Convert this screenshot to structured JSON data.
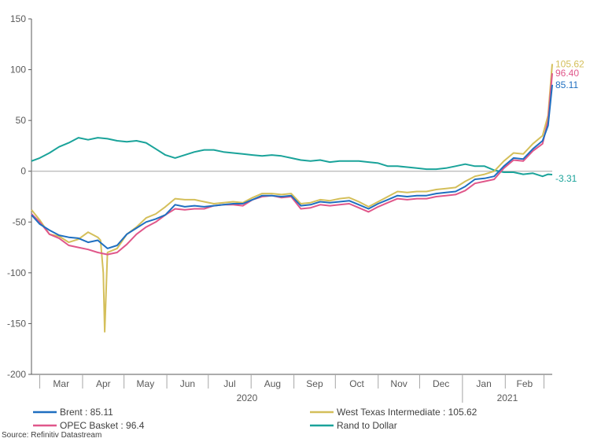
{
  "chart_data": {
    "type": "line",
    "title": "",
    "xlabel": "",
    "ylabel": "",
    "ylim": [
      -200,
      150
    ],
    "y_ticks": [
      "150",
      "100",
      "50",
      "0",
      "-50",
      "-100",
      "-150",
      "-200"
    ],
    "x_ticks": [
      "Mar",
      "Apr",
      "May",
      "Jun",
      "Jul",
      "Aug",
      "Sep",
      "Oct",
      "Nov",
      "Dec",
      "Jan",
      "Feb"
    ],
    "year_labels": [
      "2020",
      "2021"
    ],
    "grid": false,
    "legend_position": "bottom",
    "series": [
      {
        "name": "Brent : 85.11",
        "color": "#1f6fc0",
        "end_label": "85.11",
        "points": [
          [
            "2020-02-24",
            -43
          ],
          [
            "2020-03-01",
            -52
          ],
          [
            "2020-03-08",
            -58
          ],
          [
            "2020-03-15",
            -63
          ],
          [
            "2020-03-22",
            -65
          ],
          [
            "2020-03-29",
            -66
          ],
          [
            "2020-04-05",
            -70
          ],
          [
            "2020-04-12",
            -68
          ],
          [
            "2020-04-19",
            -76
          ],
          [
            "2020-04-26",
            -73
          ],
          [
            "2020-05-03",
            -62
          ],
          [
            "2020-05-10",
            -56
          ],
          [
            "2020-05-17",
            -50
          ],
          [
            "2020-05-24",
            -47
          ],
          [
            "2020-05-31",
            -43
          ],
          [
            "2020-06-07",
            -33
          ],
          [
            "2020-06-14",
            -35
          ],
          [
            "2020-06-21",
            -34
          ],
          [
            "2020-06-28",
            -35
          ],
          [
            "2020-07-05",
            -34
          ],
          [
            "2020-07-12",
            -33
          ],
          [
            "2020-07-19",
            -32
          ],
          [
            "2020-07-26",
            -32
          ],
          [
            "2020-08-02",
            -28
          ],
          [
            "2020-08-09",
            -24
          ],
          [
            "2020-08-16",
            -24
          ],
          [
            "2020-08-23",
            -25
          ],
          [
            "2020-08-30",
            -24
          ],
          [
            "2020-09-06",
            -34
          ],
          [
            "2020-09-13",
            -33
          ],
          [
            "2020-09-20",
            -30
          ],
          [
            "2020-09-27",
            -31
          ],
          [
            "2020-10-04",
            -30
          ],
          [
            "2020-10-11",
            -29
          ],
          [
            "2020-10-18",
            -33
          ],
          [
            "2020-10-25",
            -37
          ],
          [
            "2020-11-01",
            -32
          ],
          [
            "2020-11-08",
            -28
          ],
          [
            "2020-11-15",
            -24
          ],
          [
            "2020-11-22",
            -25
          ],
          [
            "2020-11-29",
            -24
          ],
          [
            "2020-12-06",
            -24
          ],
          [
            "2020-12-13",
            -22
          ],
          [
            "2020-12-20",
            -21
          ],
          [
            "2020-12-27",
            -20
          ],
          [
            "2021-01-03",
            -15
          ],
          [
            "2021-01-10",
            -8
          ],
          [
            "2021-01-17",
            -7
          ],
          [
            "2021-01-24",
            -5
          ],
          [
            "2021-01-31",
            5
          ],
          [
            "2021-02-07",
            13
          ],
          [
            "2021-02-14",
            12
          ],
          [
            "2021-02-21",
            22
          ],
          [
            "2021-02-28",
            30
          ],
          [
            "2021-03-04",
            45
          ],
          [
            "2021-03-07",
            85.11
          ]
        ]
      },
      {
        "name": "OPEC Basket : 96.4",
        "color": "#e0578a",
        "end_label": "96.40",
        "points": [
          [
            "2020-02-24",
            -42
          ],
          [
            "2020-03-01",
            -50
          ],
          [
            "2020-03-08",
            -62
          ],
          [
            "2020-03-15",
            -66
          ],
          [
            "2020-03-22",
            -73
          ],
          [
            "2020-03-29",
            -75
          ],
          [
            "2020-04-05",
            -77
          ],
          [
            "2020-04-12",
            -80
          ],
          [
            "2020-04-19",
            -82
          ],
          [
            "2020-04-26",
            -80
          ],
          [
            "2020-05-03",
            -72
          ],
          [
            "2020-05-10",
            -62
          ],
          [
            "2020-05-17",
            -55
          ],
          [
            "2020-05-24",
            -50
          ],
          [
            "2020-05-31",
            -43
          ],
          [
            "2020-06-07",
            -37
          ],
          [
            "2020-06-14",
            -38
          ],
          [
            "2020-06-21",
            -37
          ],
          [
            "2020-06-28",
            -37
          ],
          [
            "2020-07-05",
            -34
          ],
          [
            "2020-07-12",
            -33
          ],
          [
            "2020-07-19",
            -33
          ],
          [
            "2020-07-26",
            -34
          ],
          [
            "2020-08-02",
            -28
          ],
          [
            "2020-08-09",
            -25
          ],
          [
            "2020-08-16",
            -24
          ],
          [
            "2020-08-23",
            -26
          ],
          [
            "2020-08-30",
            -25
          ],
          [
            "2020-09-06",
            -37
          ],
          [
            "2020-09-13",
            -36
          ],
          [
            "2020-09-20",
            -33
          ],
          [
            "2020-09-27",
            -34
          ],
          [
            "2020-10-04",
            -33
          ],
          [
            "2020-10-11",
            -32
          ],
          [
            "2020-10-18",
            -36
          ],
          [
            "2020-10-25",
            -40
          ],
          [
            "2020-11-01",
            -35
          ],
          [
            "2020-11-08",
            -31
          ],
          [
            "2020-11-15",
            -27
          ],
          [
            "2020-11-22",
            -28
          ],
          [
            "2020-11-29",
            -27
          ],
          [
            "2020-12-06",
            -27
          ],
          [
            "2020-12-13",
            -25
          ],
          [
            "2020-12-20",
            -24
          ],
          [
            "2020-12-27",
            -23
          ],
          [
            "2021-01-03",
            -19
          ],
          [
            "2021-01-10",
            -12
          ],
          [
            "2021-01-17",
            -10
          ],
          [
            "2021-01-24",
            -8
          ],
          [
            "2021-01-31",
            3
          ],
          [
            "2021-02-07",
            11
          ],
          [
            "2021-02-14",
            10
          ],
          [
            "2021-02-21",
            20
          ],
          [
            "2021-02-28",
            27
          ],
          [
            "2021-03-04",
            50
          ],
          [
            "2021-03-07",
            96.4
          ]
        ]
      },
      {
        "name": "West Texas Intermediate : 105.62",
        "color": "#d4bf5a",
        "end_label": "105.62",
        "points": [
          [
            "2020-02-24",
            -38
          ],
          [
            "2020-03-01",
            -48
          ],
          [
            "2020-03-08",
            -62
          ],
          [
            "2020-03-15",
            -64
          ],
          [
            "2020-03-22",
            -70
          ],
          [
            "2020-03-29",
            -67
          ],
          [
            "2020-04-05",
            -60
          ],
          [
            "2020-04-12",
            -65
          ],
          [
            "2020-04-14",
            -68
          ],
          [
            "2020-04-16",
            -100
          ],
          [
            "2020-04-17",
            -158
          ],
          [
            "2020-04-19",
            -80
          ],
          [
            "2020-04-26",
            -76
          ],
          [
            "2020-05-03",
            -62
          ],
          [
            "2020-05-10",
            -55
          ],
          [
            "2020-05-17",
            -46
          ],
          [
            "2020-05-24",
            -42
          ],
          [
            "2020-05-31",
            -35
          ],
          [
            "2020-06-07",
            -27
          ],
          [
            "2020-06-14",
            -28
          ],
          [
            "2020-06-21",
            -28
          ],
          [
            "2020-06-28",
            -30
          ],
          [
            "2020-07-05",
            -32
          ],
          [
            "2020-07-12",
            -31
          ],
          [
            "2020-07-19",
            -30
          ],
          [
            "2020-07-26",
            -31
          ],
          [
            "2020-08-02",
            -26
          ],
          [
            "2020-08-09",
            -22
          ],
          [
            "2020-08-16",
            -22
          ],
          [
            "2020-08-23",
            -23
          ],
          [
            "2020-08-30",
            -22
          ],
          [
            "2020-09-06",
            -32
          ],
          [
            "2020-09-13",
            -31
          ],
          [
            "2020-09-20",
            -28
          ],
          [
            "2020-09-27",
            -29
          ],
          [
            "2020-10-04",
            -27
          ],
          [
            "2020-10-11",
            -26
          ],
          [
            "2020-10-18",
            -30
          ],
          [
            "2020-10-25",
            -35
          ],
          [
            "2020-11-01",
            -30
          ],
          [
            "2020-11-08",
            -25
          ],
          [
            "2020-11-15",
            -20
          ],
          [
            "2020-11-22",
            -21
          ],
          [
            "2020-11-29",
            -20
          ],
          [
            "2020-12-06",
            -20
          ],
          [
            "2020-12-13",
            -18
          ],
          [
            "2020-12-20",
            -17
          ],
          [
            "2020-12-27",
            -16
          ],
          [
            "2021-01-03",
            -10
          ],
          [
            "2021-01-10",
            -5
          ],
          [
            "2021-01-17",
            -3
          ],
          [
            "2021-01-24",
            0
          ],
          [
            "2021-01-31",
            10
          ],
          [
            "2021-02-07",
            18
          ],
          [
            "2021-02-14",
            17
          ],
          [
            "2021-02-21",
            27
          ],
          [
            "2021-02-28",
            35
          ],
          [
            "2021-03-04",
            55
          ],
          [
            "2021-03-07",
            105.62
          ]
        ]
      },
      {
        "name": "Rand to Dollar",
        "color": "#1aa39a",
        "end_label": "-3.31",
        "points": [
          [
            "2020-02-24",
            10
          ],
          [
            "2020-03-01",
            13
          ],
          [
            "2020-03-08",
            18
          ],
          [
            "2020-03-15",
            24
          ],
          [
            "2020-03-22",
            28
          ],
          [
            "2020-03-29",
            33
          ],
          [
            "2020-04-05",
            31
          ],
          [
            "2020-04-12",
            33
          ],
          [
            "2020-04-19",
            32
          ],
          [
            "2020-04-26",
            30
          ],
          [
            "2020-05-03",
            29
          ],
          [
            "2020-05-10",
            30
          ],
          [
            "2020-05-17",
            28
          ],
          [
            "2020-05-24",
            22
          ],
          [
            "2020-05-31",
            16
          ],
          [
            "2020-06-07",
            13
          ],
          [
            "2020-06-14",
            16
          ],
          [
            "2020-06-21",
            19
          ],
          [
            "2020-06-28",
            21
          ],
          [
            "2020-07-05",
            21
          ],
          [
            "2020-07-12",
            19
          ],
          [
            "2020-07-19",
            18
          ],
          [
            "2020-07-26",
            17
          ],
          [
            "2020-08-02",
            16
          ],
          [
            "2020-08-09",
            15
          ],
          [
            "2020-08-16",
            16
          ],
          [
            "2020-08-23",
            15
          ],
          [
            "2020-08-30",
            13
          ],
          [
            "2020-09-06",
            11
          ],
          [
            "2020-09-13",
            10
          ],
          [
            "2020-09-20",
            11
          ],
          [
            "2020-09-27",
            9
          ],
          [
            "2020-10-04",
            10
          ],
          [
            "2020-10-11",
            10
          ],
          [
            "2020-10-18",
            10
          ],
          [
            "2020-10-25",
            9
          ],
          [
            "2020-11-01",
            8
          ],
          [
            "2020-11-08",
            5
          ],
          [
            "2020-11-15",
            5
          ],
          [
            "2020-11-22",
            4
          ],
          [
            "2020-11-29",
            3
          ],
          [
            "2020-12-06",
            2
          ],
          [
            "2020-12-13",
            2
          ],
          [
            "2020-12-20",
            3
          ],
          [
            "2020-12-27",
            5
          ],
          [
            "2021-01-03",
            7
          ],
          [
            "2021-01-10",
            5
          ],
          [
            "2021-01-17",
            5
          ],
          [
            "2021-01-24",
            1
          ],
          [
            "2021-01-31",
            -1
          ],
          [
            "2021-02-07",
            -1
          ],
          [
            "2021-02-14",
            -3
          ],
          [
            "2021-02-21",
            -2
          ],
          [
            "2021-02-28",
            -5
          ],
          [
            "2021-03-04",
            -3
          ],
          [
            "2021-03-07",
            -3.31
          ]
        ]
      }
    ],
    "x_range": [
      "2020-02-24",
      "2021-03-07"
    ]
  },
  "legend": [
    {
      "label": "Brent : 85.11",
      "color": "#1f6fc0"
    },
    {
      "label": "West Texas Intermediate : 105.62",
      "color": "#d4bf5a"
    },
    {
      "label": "OPEC Basket : 96.4",
      "color": "#e0578a"
    },
    {
      "label": "Rand to Dollar",
      "color": "#1aa39a"
    }
  ],
  "source": "Source: Refinitiv Datastream"
}
